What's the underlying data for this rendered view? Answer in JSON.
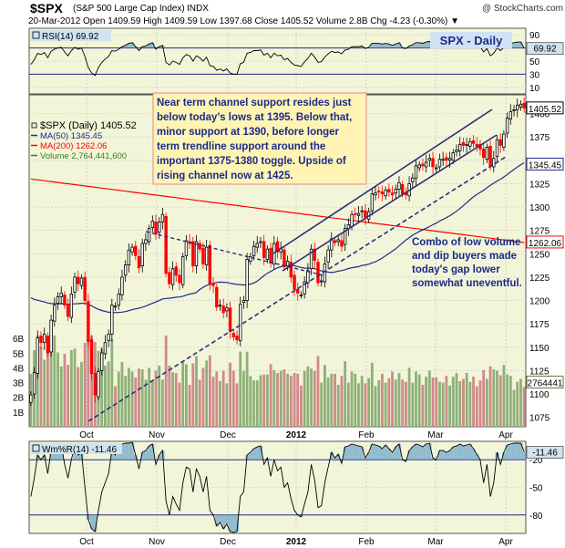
{
  "header": {
    "symbol": "$SPX",
    "name": "(S&P 500 Large Cap Index)",
    "exchange": "INDX",
    "watermark": "@ StockCharts.com",
    "quote": "20-Mar-2012   Open 1409.59   High 1409.59   Low 1397.68   Close 1405.52   Volume 2.8B   Chg -4.23 (-0.30%) ▼"
  },
  "colors": {
    "panel_bg": "#f2f5d8",
    "up": "#000000",
    "down": "#ff0000",
    "ma50": "#1f2a8c",
    "ma200": "#ff0000",
    "trendline": "#2a2f7a",
    "vol_up": "#8fb07a",
    "vol_down": "#d08a8a",
    "annotation_text": "#1a2a8a",
    "annotation_bg": "#fff4b4",
    "annotation_border": "#e08a8a",
    "rsi_fill": "#5a9ac8",
    "label_bg": "#cfe3f2"
  },
  "chart_data": {
    "type": "candlestick",
    "months": [
      "Oct",
      "Nov",
      "Dec",
      "2012",
      "Feb",
      "Mar",
      "Apr"
    ],
    "price_axis": {
      "ticks": [
        1075,
        1100,
        1125,
        1150,
        1175,
        1200,
        1225,
        1250,
        1275,
        1300,
        1325,
        1350,
        1375,
        1400
      ],
      "range": [
        1065,
        1420
      ]
    },
    "volume_axis": {
      "ticks": [
        "1B",
        "2B",
        "3B",
        "4B",
        "5B",
        "6B"
      ],
      "range": [
        0,
        7
      ]
    },
    "price_labels": {
      "close": "1405.52",
      "ma50": "1345.45",
      "ma200": "1262.06",
      "volume": "2764441"
    },
    "legend": [
      "$SPX (Daily) 1405.52",
      "MA(50) 1345.45",
      "MA(200) 1262.06",
      "Volume 2,764,441,600"
    ],
    "badge": "SPX - Daily",
    "annotations": [
      "Near term channel support resides just\nbelow today's lows at 1395. Below that,\nminor support at 1390, before longer\nterm trendline support around the\nimportant 1375-1380 toggle. Upside of\nrising channel now at 1425.",
      "Combo of low volume\nand dip buyers made\ntoday's gap lower\nsomewhat uneventful."
    ],
    "closes": [
      1099,
      1123,
      1160,
      1155,
      1164,
      1144,
      1179,
      1195,
      1204,
      1208,
      1195,
      1183,
      1207,
      1225,
      1218,
      1224,
      1200,
      1156,
      1122,
      1099,
      1124,
      1144,
      1155,
      1164,
      1195,
      1194,
      1207,
      1225,
      1238,
      1254,
      1257,
      1248,
      1235,
      1261,
      1265,
      1277,
      1285,
      1271,
      1284,
      1292,
      1229,
      1218,
      1234,
      1227,
      1219,
      1247,
      1264,
      1261,
      1237,
      1263,
      1255,
      1239,
      1257,
      1218,
      1216,
      1193,
      1195,
      1187,
      1192,
      1167,
      1161,
      1158,
      1196,
      1200,
      1244,
      1247,
      1258,
      1261,
      1263,
      1246,
      1255,
      1240,
      1261,
      1252,
      1256,
      1236,
      1242,
      1225,
      1212,
      1208,
      1206,
      1220,
      1232,
      1255,
      1243,
      1219,
      1221,
      1239,
      1254,
      1266,
      1262,
      1265,
      1258,
      1277,
      1281,
      1292,
      1292,
      1293,
      1296,
      1289,
      1295,
      1314,
      1315,
      1316,
      1314,
      1318,
      1316,
      1313,
      1319,
      1326,
      1314,
      1313,
      1325,
      1331,
      1344,
      1345,
      1344,
      1348,
      1352,
      1343,
      1342,
      1351,
      1351,
      1350,
      1352,
      1358,
      1361,
      1367,
      1366,
      1367,
      1370,
      1368,
      1365,
      1362,
      1353,
      1364,
      1344,
      1352,
      1372,
      1366,
      1378,
      1395,
      1402,
      1404,
      1409,
      1410,
      1406
    ],
    "rsi": {
      "label": "RSI(14) 69.92",
      "ticks": [
        10,
        30,
        50,
        70,
        90
      ],
      "last": "69.92",
      "values": [
        45,
        52,
        62,
        60,
        63,
        55,
        65,
        68,
        70,
        71,
        64,
        58,
        66,
        71,
        68,
        70,
        57,
        40,
        32,
        28,
        40,
        48,
        53,
        57,
        66,
        65,
        68,
        72,
        74,
        77,
        78,
        72,
        66,
        72,
        73,
        76,
        78,
        68,
        72,
        74,
        48,
        44,
        50,
        48,
        45,
        55,
        60,
        58,
        50,
        58,
        55,
        50,
        56,
        43,
        42,
        36,
        38,
        35,
        38,
        32,
        30,
        30,
        46,
        48,
        62,
        63,
        66,
        66,
        67,
        59,
        62,
        55,
        62,
        58,
        59,
        52,
        54,
        48,
        44,
        43,
        42,
        49,
        54,
        62,
        56,
        48,
        49,
        56,
        61,
        65,
        63,
        64,
        61,
        67,
        68,
        72,
        72,
        72,
        73,
        69,
        71,
        77,
        77,
        77,
        76,
        77,
        76,
        74,
        76,
        78,
        70,
        69,
        73,
        75,
        78,
        78,
        77,
        79,
        80,
        73,
        72,
        75,
        75,
        74,
        75,
        77,
        78,
        80,
        79,
        79,
        80,
        78,
        75,
        72,
        64,
        69,
        58,
        62,
        70,
        66,
        71,
        76,
        77,
        78,
        79,
        79,
        70
      ]
    },
    "williams": {
      "label": "Wm%R(14) -11.46",
      "ticks": [
        -20,
        -50,
        -80
      ],
      "last": "-11.46",
      "values": [
        -60,
        -40,
        -15,
        -20,
        -15,
        -35,
        -10,
        -5,
        -5,
        -3,
        -25,
        -40,
        -20,
        -5,
        -15,
        -12,
        -50,
        -85,
        -95,
        -98,
        -75,
        -55,
        -45,
        -35,
        -10,
        -15,
        -8,
        -3,
        -2,
        -2,
        -1,
        -15,
        -30,
        -12,
        -10,
        -5,
        -3,
        -25,
        -15,
        -10,
        -65,
        -80,
        -60,
        -68,
        -75,
        -45,
        -28,
        -30,
        -55,
        -30,
        -38,
        -55,
        -38,
        -75,
        -80,
        -92,
        -88,
        -95,
        -90,
        -98,
        -99,
        -98,
        -60,
        -55,
        -15,
        -12,
        -8,
        -6,
        -5,
        -25,
        -18,
        -38,
        -20,
        -32,
        -28,
        -50,
        -45,
        -62,
        -75,
        -80,
        -82,
        -68,
        -55,
        -25,
        -42,
        -72,
        -70,
        -45,
        -28,
        -12,
        -18,
        -14,
        -24,
        -6,
        -5,
        -3,
        -4,
        -5,
        -6,
        -18,
        -12,
        -3,
        -4,
        -5,
        -8,
        -4,
        -8,
        -12,
        -6,
        -3,
        -20,
        -22,
        -10,
        -6,
        -3,
        -4,
        -6,
        -3,
        -2,
        -18,
        -20,
        -10,
        -10,
        -12,
        -10,
        -6,
        -5,
        -3,
        -5,
        -4,
        -3,
        -8,
        -14,
        -20,
        -45,
        -25,
        -60,
        -45,
        -12,
        -25,
        -12,
        -4,
        -3,
        -2,
        -2,
        -2,
        -11
      ]
    }
  }
}
